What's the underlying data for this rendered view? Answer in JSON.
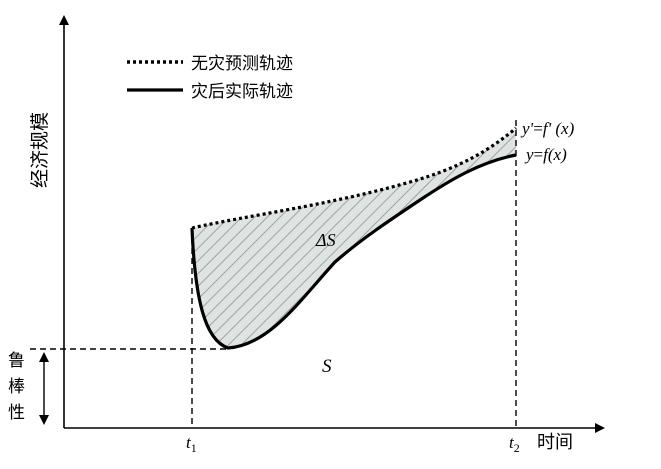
{
  "axes": {
    "y_label": "经济规模",
    "x_label": "时间",
    "t1_base": "t",
    "t1_sub": "1",
    "t2_base": "t",
    "t2_sub": "2"
  },
  "legend": {
    "predicted": "无灾预测轨迹",
    "actual": "灾后实际轨迹"
  },
  "curves": {
    "predicted_label_y": "y'",
    "predicted_label_eq": "=",
    "predicted_label_f": "f'",
    "predicted_label_x": " (x)",
    "actual_label_y": "y",
    "actual_label_eq": "=",
    "actual_label_f": "f",
    "actual_label_x": "(x)"
  },
  "regions": {
    "delta_area_label": "ΔS",
    "area_label": "S"
  },
  "robustness": {
    "char1": "鲁",
    "char2": "棒",
    "char3": "性"
  },
  "colors": {
    "line": "#000000",
    "hatch_fill": "#dfe4e3",
    "hatch_stroke": "#9aa5a3"
  }
}
